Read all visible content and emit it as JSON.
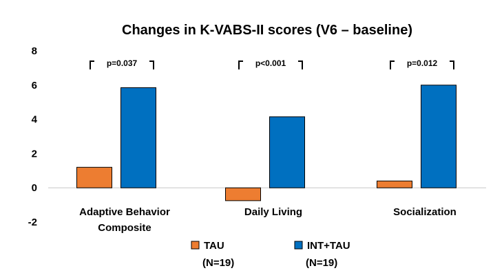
{
  "chart_data": {
    "type": "bar",
    "title": "Changes in K-VABS-II scores (V6 – baseline)",
    "xlabel": "",
    "ylabel": "",
    "ylim": [
      -2,
      8
    ],
    "yticks": [
      "8",
      "6",
      "4",
      "2",
      "0",
      "-2"
    ],
    "grid": false,
    "legend_position": "bottom",
    "categories": [
      {
        "lines": [
          "Adaptive Behavior",
          "Composite"
        ]
      },
      {
        "lines": [
          "Daily Living"
        ]
      },
      {
        "lines": [
          "Socialization"
        ]
      }
    ],
    "series": [
      {
        "name": "TAU",
        "n_label": "(N=19)",
        "color": "#ED7D31",
        "values": [
          1.2,
          -0.75,
          0.4
        ]
      },
      {
        "name": "INT+TAU",
        "n_label": "(N=19)",
        "color": "#0070C0",
        "values": [
          5.85,
          4.15,
          6.0
        ]
      }
    ],
    "annotations": [
      "p=0.037",
      "p<0.001",
      "p=0.012"
    ]
  }
}
